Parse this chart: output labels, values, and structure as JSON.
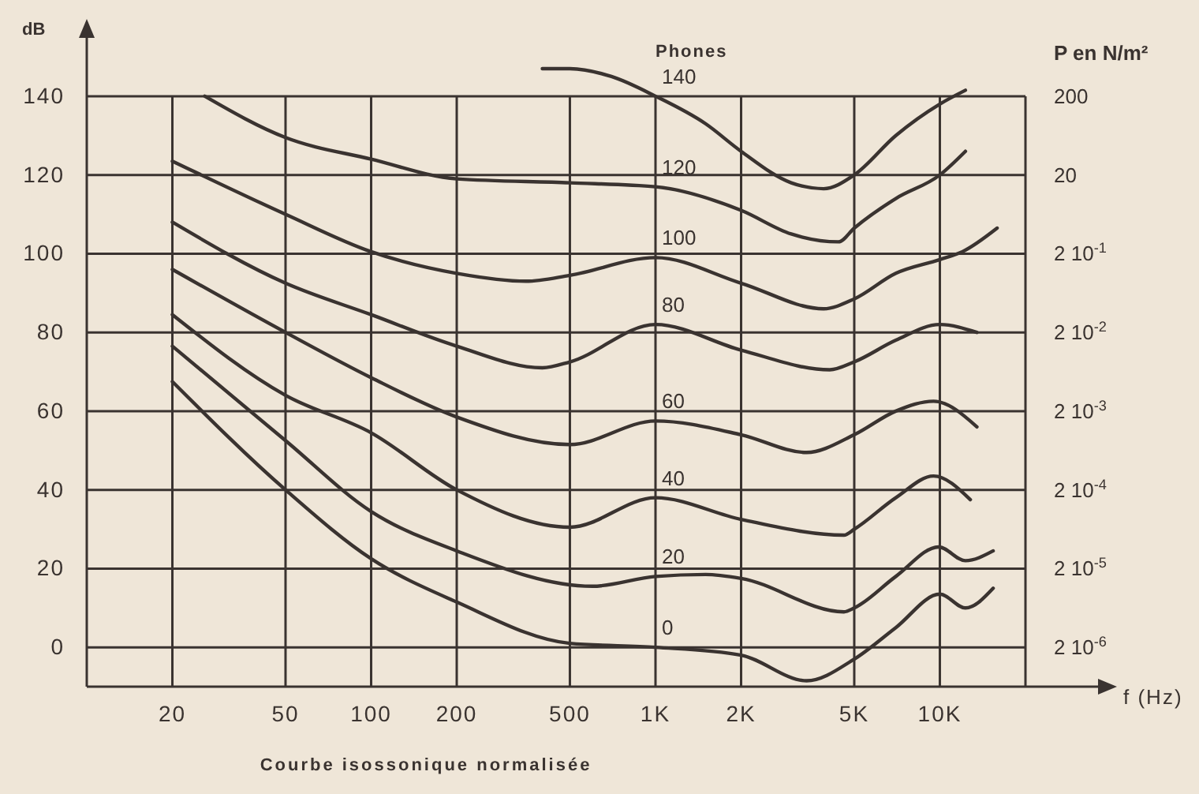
{
  "chart_data": {
    "type": "line",
    "ylabel": "dB",
    "xlabel": "f (Hz)",
    "y2label": "P en N/m²",
    "legend_title": "Phones",
    "annotations": [
      "Courbe isossonique normalisée",
      "200",
      "20",
      "2 10$^{-1}$",
      "2 10$^{-2}$",
      "2 10$^{-3}$",
      "2 10$^{-4}$",
      "2 10$^{-5}$",
      "2 10$^{-6}$"
    ],
    "log": "x",
    "grid": true,
    "marker": "none",
    "line_style": "solid",
    "xlim": [
      10,
      20000
    ],
    "xticks": [
      20,
      50,
      100,
      200,
      500,
      {
        "value": 1000,
        "label": "1K"
      },
      {
        "value": 2000,
        "label": "2K"
      },
      {
        "value": 5000,
        "label": "5K"
      },
      {
        "value": 10000,
        "label": "10K"
      }
    ],
    "ylim": [
      -10,
      150
    ],
    "yticks": [
      0,
      20,
      40,
      60,
      80,
      100,
      120,
      140
    ],
    "series": [
      {
        "name": "140",
        "color": "#3a3330",
        "x": [
          400,
          500,
          700,
          1000,
          1500,
          2000,
          3000,
          3900,
          5000,
          7000,
          10000,
          12300
        ],
        "values": [
          147,
          147,
          145,
          140,
          133,
          126,
          118,
          116.5,
          120,
          130,
          138,
          141.5
        ]
      },
      {
        "name": "120",
        "color": "#3a3330",
        "x": [
          26,
          50,
          100,
          200,
          500,
          1000,
          2000,
          3000,
          4400,
          5000,
          7000,
          10000,
          12300
        ],
        "values": [
          140,
          129.5,
          124,
          119,
          118,
          117,
          111,
          105,
          103,
          106.5,
          114,
          120,
          126
        ]
      },
      {
        "name": "100",
        "color": "#3a3330",
        "x": [
          20,
          50,
          100,
          200,
          350,
          500,
          1000,
          2000,
          3900,
          5000,
          7000,
          10000,
          12000,
          15900
        ],
        "values": [
          123.5,
          110,
          100.5,
          95,
          93,
          94.5,
          99,
          92.5,
          86,
          88.5,
          95,
          98.5,
          100.5,
          106.5
        ]
      },
      {
        "name": "80",
        "color": "#3a3330",
        "x": [
          20,
          50,
          100,
          200,
          400,
          500,
          1000,
          2000,
          4100,
          5000,
          7000,
          10000,
          13500
        ],
        "values": [
          108,
          92.5,
          84.5,
          76.5,
          71,
          72.5,
          82,
          75.5,
          70.5,
          72.5,
          78,
          82,
          80
        ]
      },
      {
        "name": "60",
        "color": "#3a3330",
        "x": [
          20,
          50,
          100,
          200,
          500,
          1000,
          2000,
          3400,
          5000,
          7000,
          9500,
          13500
        ],
        "values": [
          96,
          80,
          68.5,
          58.5,
          51.5,
          57.5,
          54,
          49.5,
          54,
          60,
          62.5,
          56
        ]
      },
      {
        "name": "40",
        "color": "#3a3330",
        "x": [
          20,
          50,
          100,
          200,
          500,
          1000,
          2000,
          4600,
          5000,
          7000,
          9500,
          12800
        ],
        "values": [
          84.5,
          64,
          54.5,
          40,
          30.5,
          38,
          32.5,
          28.5,
          30,
          38,
          43.5,
          37.5
        ]
      },
      {
        "name": "20",
        "color": "#3a3330",
        "x": [
          20,
          50,
          100,
          200,
          600,
          1000,
          1500,
          2000,
          4600,
          5000,
          7000,
          9900,
          12300,
          15400
        ],
        "values": [
          76.5,
          52.5,
          34.5,
          24.5,
          15.5,
          18,
          18.5,
          17.5,
          9,
          10,
          18,
          25.5,
          22,
          24.5
        ]
      },
      {
        "name": "0",
        "color": "#3a3330",
        "x": [
          20,
          50,
          100,
          200,
          500,
          1000,
          2000,
          3400,
          5000,
          7000,
          10000,
          12300,
          15400
        ],
        "values": [
          67.5,
          40,
          22.5,
          11.5,
          1,
          0,
          -2,
          -8.5,
          -3,
          5,
          13.5,
          10,
          15
        ]
      }
    ]
  }
}
